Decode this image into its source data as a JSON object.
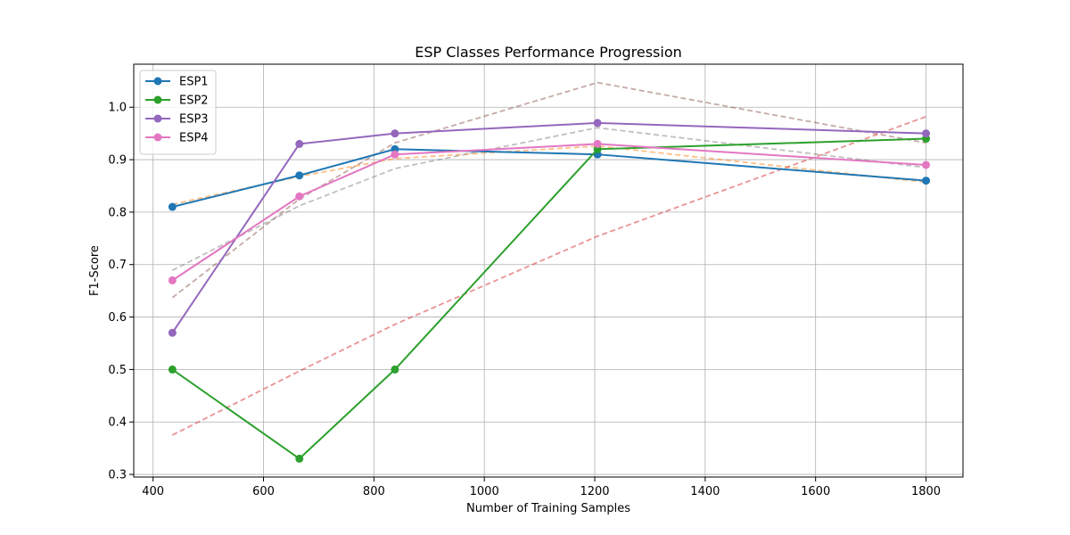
{
  "chart_data": {
    "type": "line",
    "title": "ESP Classes Performance Progression",
    "xlabel": "Number of Training Samples",
    "ylabel": "F1-Score",
    "xlim": [
      365,
      1867
    ],
    "ylim": [
      0.295,
      1.082
    ],
    "xticks": [
      400,
      600,
      800,
      1000,
      1200,
      1400,
      1600,
      1800
    ],
    "yticks": [
      0.3,
      0.4,
      0.5,
      0.6,
      0.7,
      0.8,
      0.9,
      1.0
    ],
    "grid": true,
    "legend_position": "top-left",
    "x": [
      435,
      665,
      838,
      1205,
      1800
    ],
    "series": [
      {
        "name": "ESP1",
        "color": "#1f77b4",
        "values": [
          0.81,
          0.87,
          0.92,
          0.91,
          0.86
        ]
      },
      {
        "name": "ESP2",
        "color": "#2ca02c",
        "values": [
          0.5,
          0.33,
          0.5,
          0.92,
          0.94
        ]
      },
      {
        "name": "ESP3",
        "color": "#9467bd",
        "values": [
          0.57,
          0.93,
          0.95,
          0.97,
          0.95
        ]
      },
      {
        "name": "ESP4",
        "color": "#e377c2",
        "values": [
          0.67,
          0.83,
          0.91,
          0.93,
          0.89
        ]
      }
    ],
    "trend_lines": [
      {
        "color": "#ff7f0e",
        "values": [
          0.815,
          0.868,
          0.902,
          0.926,
          0.857
        ]
      },
      {
        "color": "#d62728",
        "values": [
          0.375,
          0.497,
          0.586,
          0.754,
          0.982
        ]
      },
      {
        "color": "#8c564b",
        "values": [
          0.637,
          0.825,
          0.932,
          1.047,
          0.932
        ]
      },
      {
        "color": "#7f7f7f",
        "values": [
          0.689,
          0.812,
          0.883,
          0.961,
          0.885
        ]
      }
    ]
  }
}
